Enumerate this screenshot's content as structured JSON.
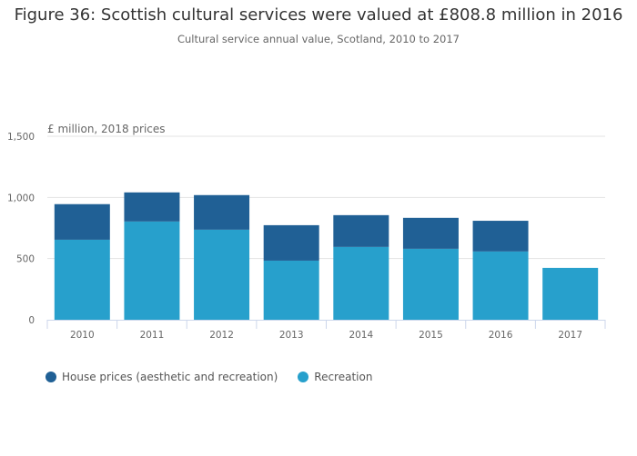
{
  "chart_data": {
    "type": "bar",
    "stacked": true,
    "title": "Figure 36: Scottish cultural services were valued at £808.8 million in 2016",
    "subtitle": "Cultural service annual value, Scotland, 2010 to 2017",
    "ylabel": "£ million, 2018 prices",
    "xlabel": "",
    "ylim": [
      0,
      1500
    ],
    "yticks": [
      0,
      500,
      1000,
      1500
    ],
    "ytick_labels": [
      "0",
      "500",
      "1,000",
      "1,500"
    ],
    "grid": true,
    "legend_position": "bottom-left",
    "categories": [
      "2010",
      "2011",
      "2012",
      "2013",
      "2014",
      "2015",
      "2016",
      "2017"
    ],
    "series": [
      {
        "name": "Recreation",
        "color": "#27a0cc",
        "values": [
          654,
          803,
          736,
          483,
          595,
          580,
          558,
          424
        ]
      },
      {
        "name": "House prices (aesthetic and recreation)",
        "color": "#206095",
        "values": [
          291,
          238,
          283,
          290,
          260,
          253,
          251,
          0
        ]
      }
    ]
  }
}
